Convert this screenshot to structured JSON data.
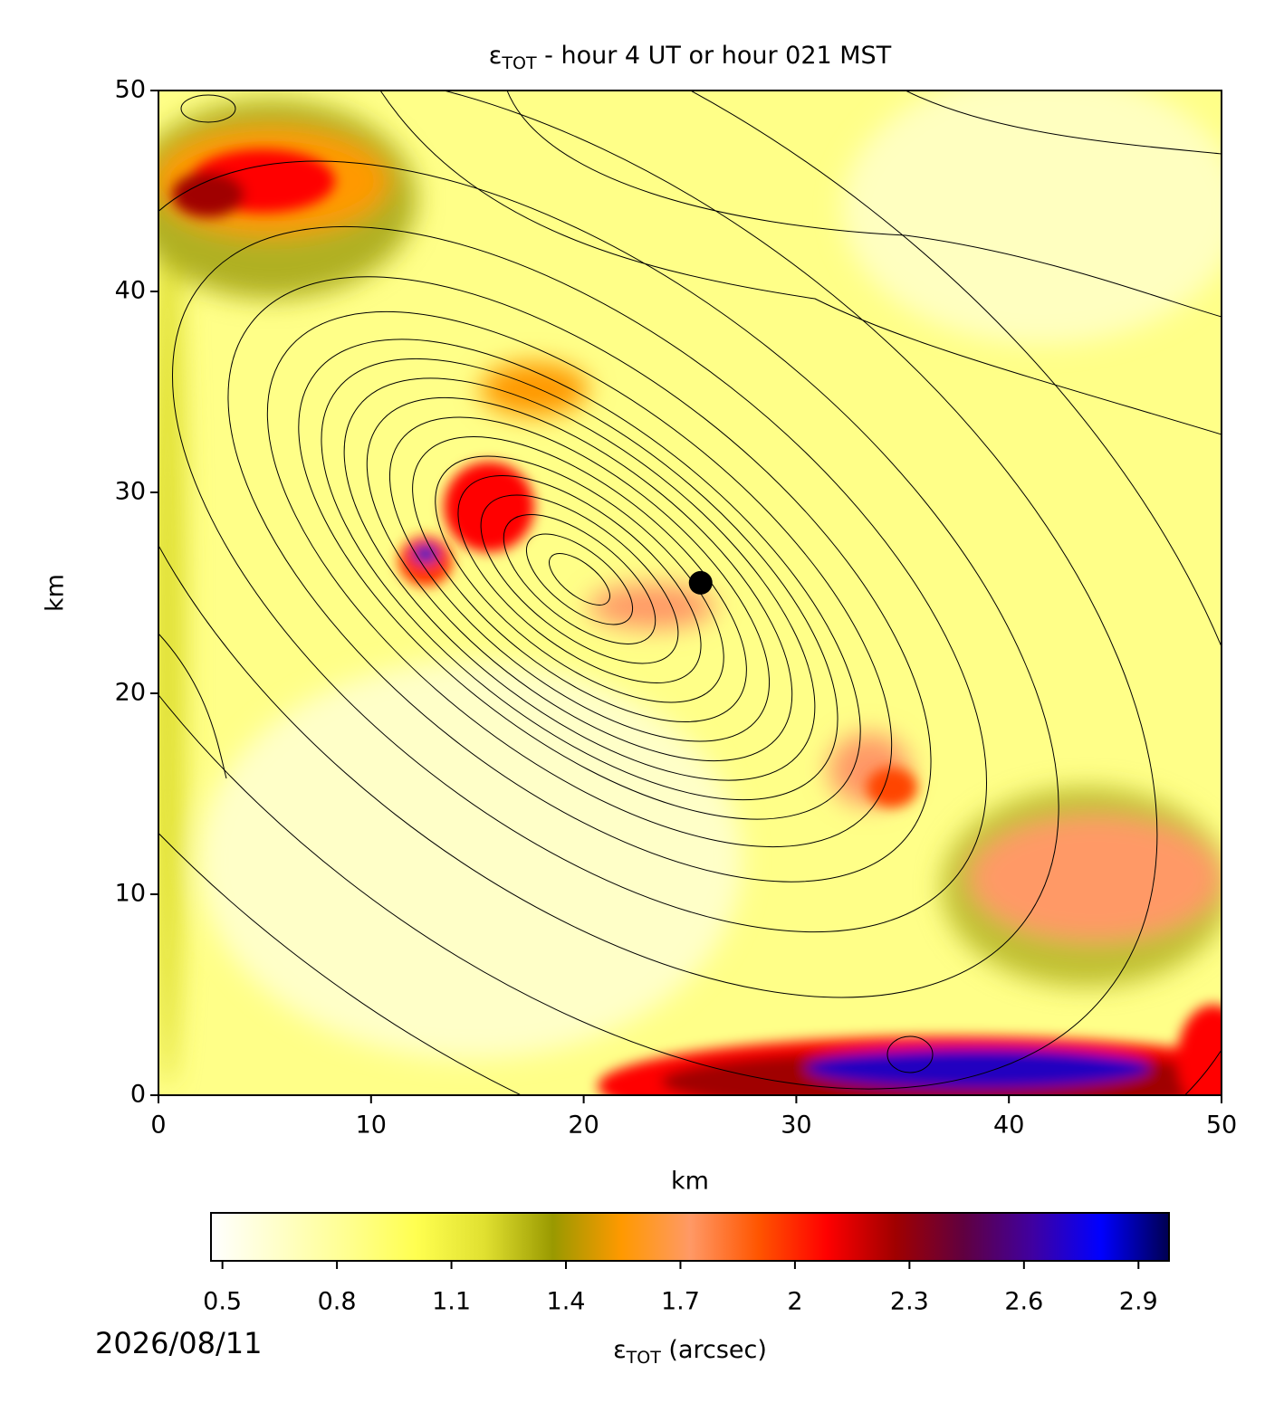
{
  "chart_data": {
    "type": "heatmap",
    "title": {
      "symbol": "ε",
      "subscript": "TOT",
      "text": " - hour 4 UT or hour 021 MST"
    },
    "x_label": "km",
    "y_label": "km",
    "xlim": [
      0,
      50
    ],
    "ylim": [
      0,
      50
    ],
    "xticks": [
      0,
      10,
      20,
      30,
      40,
      50
    ],
    "yticks": [
      0,
      10,
      20,
      30,
      40,
      50
    ],
    "marker": {
      "x": 25.5,
      "y": 25.5,
      "color": "#000000"
    },
    "colorbar": {
      "label": {
        "symbol": "ε",
        "subscript": "TOT",
        "text": " (arcsec)"
      },
      "lim": [
        0.47,
        2.98
      ],
      "ticks": [
        0.5,
        0.8,
        1.1,
        1.4,
        1.7,
        2.0,
        2.3,
        2.6,
        2.9
      ],
      "colors": [
        "#ffffff",
        "#ffffc8",
        "#ffff90",
        "#ffff50",
        "#e0e030",
        "#999900",
        "#ff9900",
        "#ff9966",
        "#ff5500",
        "#ff0000",
        "#a00000",
        "#600040",
        "#4000a0",
        "#0000ff",
        "#000050"
      ]
    },
    "date": "2026/08/11"
  }
}
